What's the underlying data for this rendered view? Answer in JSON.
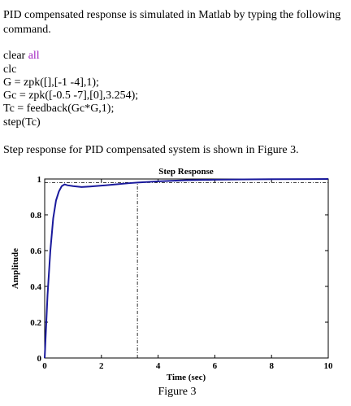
{
  "intro": [
    "PID compensated response is simulated in Matlab by typing the following",
    "command."
  ],
  "code": {
    "first": {
      "command": "clear",
      "keyword": "all"
    },
    "lines": [
      "clc",
      "G = zpk([],[-1 -4],1);",
      "Gc = zpk([-0.5 -7],[0],3.254);",
      "Tc = feedback(Gc*G,1);",
      "step(Tc)"
    ]
  },
  "after": "Step response for PID compensated system is shown in Figure 3.",
  "caption": "Figure 3",
  "chart_data": {
    "type": "line",
    "title": "Step Response",
    "x_label": "Time (sec)",
    "y_label": "Amplitude",
    "x": [
      0,
      0.1,
      0.2,
      0.3,
      0.4,
      0.5,
      0.6,
      0.7,
      0.8,
      1,
      1.3,
      1.6,
      2,
      2.5,
      3,
      3.27,
      4,
      5,
      6,
      7,
      8,
      10
    ],
    "series": [
      {
        "color": "#1a1a9c",
        "values": [
          0,
          0.35,
          0.6,
          0.78,
          0.88,
          0.93,
          0.96,
          0.97,
          0.965,
          0.96,
          0.955,
          0.958,
          0.963,
          0.97,
          0.977,
          0.98,
          0.987,
          0.993,
          0.996,
          0.998,
          0.999,
          1
        ]
      }
    ],
    "settling_marker": {
      "x": 3.27,
      "y": 0.98
    },
    "xlim": [
      0,
      10
    ],
    "ylim": [
      0,
      1
    ],
    "xticks": [
      0,
      2,
      4,
      6,
      8,
      10
    ],
    "yticks": [
      0,
      0.2,
      0.4,
      0.6,
      0.8,
      1
    ]
  }
}
